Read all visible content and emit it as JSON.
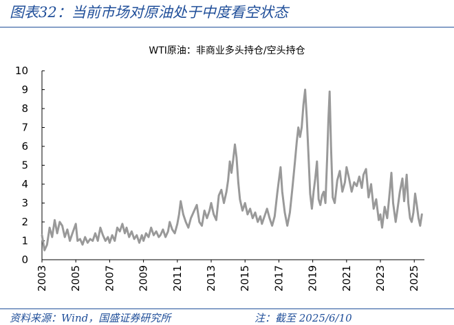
{
  "figure": {
    "title": "图表32：当前市场对原油处于中度看空状态",
    "source": "资料来源：Wind，国盛证券研究所",
    "note": "注：截至 2025/6/10"
  },
  "colors": {
    "accent": "#1f4e99",
    "series": "#999999",
    "axis": "#000000"
  },
  "chart_data": {
    "type": "line",
    "title": "WTI原油：非商业多头持仓/空头持仓",
    "xlabel": "",
    "ylabel": "",
    "xlim": [
      2003,
      2025.6
    ],
    "ylim": [
      0,
      10
    ],
    "yticks": [
      0,
      1,
      2,
      3,
      4,
      5,
      6,
      7,
      8,
      9,
      10
    ],
    "xticks": [
      "2003",
      "2005",
      "2007",
      "2009",
      "2011",
      "2013",
      "2015",
      "2017",
      "2019",
      "2021",
      "2023",
      "2025"
    ],
    "grid": false,
    "legend": "none",
    "series": [
      {
        "name": "",
        "points": [
          [
            2003.0,
            1.3
          ],
          [
            2003.15,
            0.5
          ],
          [
            2003.3,
            0.8
          ],
          [
            2003.45,
            1.7
          ],
          [
            2003.6,
            1.2
          ],
          [
            2003.75,
            2.1
          ],
          [
            2003.9,
            1.4
          ],
          [
            2004.05,
            2.0
          ],
          [
            2004.2,
            1.8
          ],
          [
            2004.35,
            1.2
          ],
          [
            2004.5,
            1.6
          ],
          [
            2004.65,
            1.0
          ],
          [
            2004.8,
            1.4
          ],
          [
            2005.0,
            1.9
          ],
          [
            2005.1,
            1.0
          ],
          [
            2005.25,
            1.1
          ],
          [
            2005.4,
            0.8
          ],
          [
            2005.55,
            1.2
          ],
          [
            2005.7,
            0.9
          ],
          [
            2005.85,
            1.1
          ],
          [
            2006.0,
            1.0
          ],
          [
            2006.15,
            1.4
          ],
          [
            2006.3,
            1.0
          ],
          [
            2006.45,
            1.7
          ],
          [
            2006.6,
            1.3
          ],
          [
            2006.75,
            1.0
          ],
          [
            2006.9,
            1.2
          ],
          [
            2007.0,
            0.9
          ],
          [
            2007.15,
            1.3
          ],
          [
            2007.3,
            1.0
          ],
          [
            2007.45,
            1.7
          ],
          [
            2007.6,
            1.5
          ],
          [
            2007.75,
            1.9
          ],
          [
            2007.9,
            1.4
          ],
          [
            2008.0,
            1.7
          ],
          [
            2008.15,
            1.2
          ],
          [
            2008.3,
            1.5
          ],
          [
            2008.45,
            1.1
          ],
          [
            2008.6,
            1.3
          ],
          [
            2008.75,
            0.9
          ],
          [
            2008.9,
            1.3
          ],
          [
            2009.0,
            1.0
          ],
          [
            2009.15,
            1.4
          ],
          [
            2009.3,
            1.2
          ],
          [
            2009.45,
            1.7
          ],
          [
            2009.6,
            1.3
          ],
          [
            2009.75,
            1.5
          ],
          [
            2009.9,
            1.2
          ],
          [
            2010.0,
            1.3
          ],
          [
            2010.15,
            1.6
          ],
          [
            2010.3,
            1.2
          ],
          [
            2010.45,
            1.5
          ],
          [
            2010.55,
            2.0
          ],
          [
            2010.7,
            1.6
          ],
          [
            2010.85,
            1.4
          ],
          [
            2011.0,
            1.9
          ],
          [
            2011.1,
            2.4
          ],
          [
            2011.2,
            3.1
          ],
          [
            2011.35,
            2.4
          ],
          [
            2011.5,
            2.0
          ],
          [
            2011.65,
            1.7
          ],
          [
            2011.8,
            2.2
          ],
          [
            2012.0,
            2.6
          ],
          [
            2012.15,
            2.9
          ],
          [
            2012.3,
            2.0
          ],
          [
            2012.45,
            1.8
          ],
          [
            2012.6,
            2.6
          ],
          [
            2012.75,
            2.2
          ],
          [
            2012.9,
            2.6
          ],
          [
            2013.0,
            3.0
          ],
          [
            2013.15,
            2.4
          ],
          [
            2013.3,
            2.1
          ],
          [
            2013.45,
            3.4
          ],
          [
            2013.6,
            3.7
          ],
          [
            2013.75,
            3.0
          ],
          [
            2013.9,
            3.6
          ],
          [
            2014.0,
            4.2
          ],
          [
            2014.1,
            5.2
          ],
          [
            2014.2,
            4.6
          ],
          [
            2014.3,
            5.3
          ],
          [
            2014.4,
            6.1
          ],
          [
            2014.5,
            5.4
          ],
          [
            2014.6,
            4.1
          ],
          [
            2014.7,
            3.2
          ],
          [
            2014.85,
            2.6
          ],
          [
            2015.0,
            3.0
          ],
          [
            2015.15,
            2.4
          ],
          [
            2015.3,
            2.7
          ],
          [
            2015.45,
            2.2
          ],
          [
            2015.6,
            2.5
          ],
          [
            2015.75,
            2.0
          ],
          [
            2015.9,
            2.3
          ],
          [
            2016.0,
            1.9
          ],
          [
            2016.15,
            2.3
          ],
          [
            2016.3,
            2.7
          ],
          [
            2016.45,
            2.2
          ],
          [
            2016.6,
            1.8
          ],
          [
            2016.75,
            2.3
          ],
          [
            2016.9,
            3.5
          ],
          [
            2017.0,
            4.2
          ],
          [
            2017.1,
            4.9
          ],
          [
            2017.2,
            3.6
          ],
          [
            2017.35,
            2.5
          ],
          [
            2017.5,
            1.8
          ],
          [
            2017.65,
            2.5
          ],
          [
            2017.8,
            3.8
          ],
          [
            2017.95,
            5.2
          ],
          [
            2018.05,
            6.2
          ],
          [
            2018.15,
            7.0
          ],
          [
            2018.25,
            6.5
          ],
          [
            2018.35,
            7.0
          ],
          [
            2018.45,
            8.2
          ],
          [
            2018.55,
            9.0
          ],
          [
            2018.65,
            7.5
          ],
          [
            2018.75,
            5.5
          ],
          [
            2018.85,
            3.5
          ],
          [
            2018.95,
            2.7
          ],
          [
            2019.05,
            3.6
          ],
          [
            2019.15,
            4.3
          ],
          [
            2019.25,
            5.2
          ],
          [
            2019.35,
            3.2
          ],
          [
            2019.45,
            2.9
          ],
          [
            2019.55,
            3.4
          ],
          [
            2019.65,
            3.6
          ],
          [
            2019.75,
            3.0
          ],
          [
            2019.85,
            5.3
          ],
          [
            2019.93,
            7.5
          ],
          [
            2020.0,
            8.9
          ],
          [
            2020.08,
            6.0
          ],
          [
            2020.18,
            3.3
          ],
          [
            2020.3,
            3.0
          ],
          [
            2020.45,
            4.2
          ],
          [
            2020.6,
            4.7
          ],
          [
            2020.75,
            3.6
          ],
          [
            2020.9,
            4.1
          ],
          [
            2021.0,
            4.9
          ],
          [
            2021.15,
            4.3
          ],
          [
            2021.3,
            3.6
          ],
          [
            2021.45,
            4.1
          ],
          [
            2021.6,
            3.9
          ],
          [
            2021.75,
            4.4
          ],
          [
            2021.9,
            3.8
          ],
          [
            2022.0,
            4.5
          ],
          [
            2022.15,
            4.8
          ],
          [
            2022.3,
            3.3
          ],
          [
            2022.45,
            4.0
          ],
          [
            2022.6,
            2.7
          ],
          [
            2022.75,
            3.2
          ],
          [
            2022.9,
            2.1
          ],
          [
            2023.0,
            2.4
          ],
          [
            2023.1,
            1.7
          ],
          [
            2023.25,
            2.8
          ],
          [
            2023.4,
            2.2
          ],
          [
            2023.55,
            3.6
          ],
          [
            2023.65,
            4.6
          ],
          [
            2023.75,
            3.0
          ],
          [
            2023.9,
            2.0
          ],
          [
            2024.0,
            2.6
          ],
          [
            2024.15,
            3.6
          ],
          [
            2024.3,
            4.3
          ],
          [
            2024.4,
            3.1
          ],
          [
            2024.55,
            4.5
          ],
          [
            2024.65,
            3.0
          ],
          [
            2024.75,
            2.2
          ],
          [
            2024.85,
            2.0
          ],
          [
            2024.95,
            2.5
          ],
          [
            2025.05,
            3.5
          ],
          [
            2025.15,
            2.9
          ],
          [
            2025.25,
            2.2
          ],
          [
            2025.35,
            1.8
          ],
          [
            2025.45,
            2.4
          ]
        ]
      }
    ]
  }
}
